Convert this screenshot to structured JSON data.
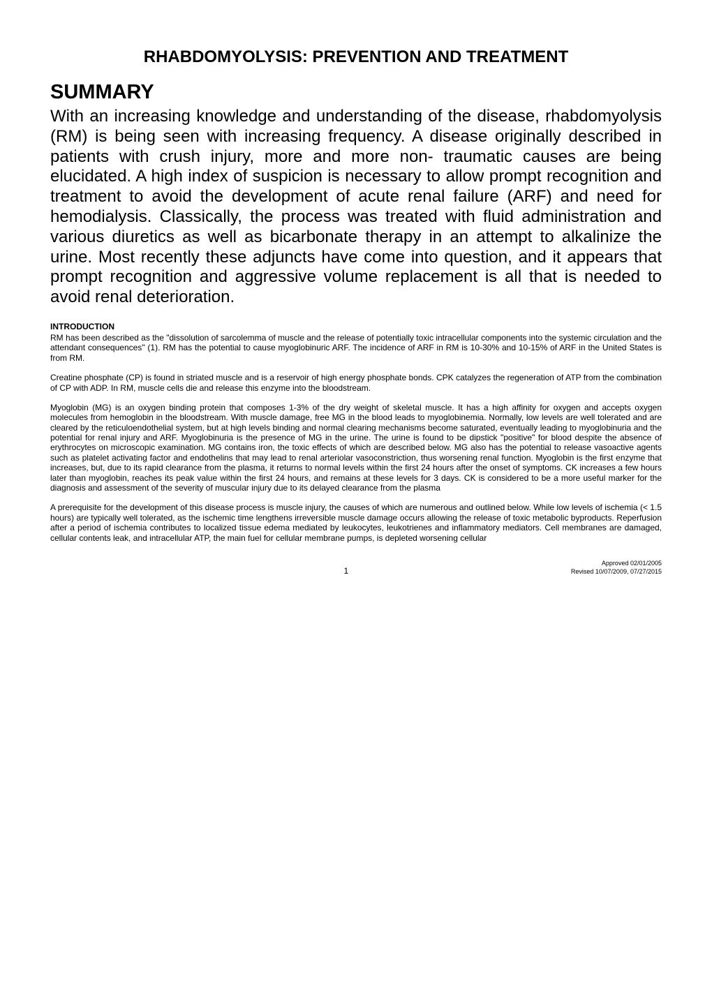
{
  "title": "RHABDOMYOLYSIS: PREVENTION AND TREATMENT",
  "summary": {
    "heading": "SUMMARY",
    "text": "With an increasing knowledge and understanding of the disease, rhabdomyolysis (RM) is being seen with increasing frequency. A disease originally described in patients with crush injury, more and more non- traumatic causes are being elucidated. A high index of suspicion is necessary to allow prompt recognition and treatment to avoid the development of acute renal failure (ARF) and need for hemodialysis.  Classically, the process was treated with fluid administration and various diuretics as well as bicarbonate therapy in an attempt to alkalinize the urine.  Most recently these adjuncts have come into question, and it appears that prompt recognition and aggressive volume replacement is all that is needed to avoid renal deterioration."
  },
  "introduction": {
    "heading": "INTRODUCTION",
    "paragraphs": [
      "RM has been described as the \"dissolution of sarcolemma of muscle and the release of potentially toxic intracellular components into the systemic circulation and the attendant consequences\" (1).  RM has the potential to cause myoglobinuric ARF.  The incidence of ARF in RM is 10-30% and 10-15% of ARF in the United States is from RM.",
      "Creatine phosphate (CP) is found in striated muscle and is a reservoir of high energy phosphate bonds. CPK catalyzes the regeneration of ATP from the combination of CP with ADP.  In RM, muscle cells die and release this enzyme into the bloodstream.",
      "Myoglobin (MG) is an oxygen binding protein that composes 1-3% of the dry weight of skeletal muscle.  It has a high affinity for oxygen and accepts oxygen molecules from hemoglobin in the bloodstream.  With muscle damage, free MG in the blood leads to myoglobinemia.  Normally, low levels are well tolerated and are cleared by the reticuloendothelial system, but at high levels binding and normal clearing mechanisms become saturated, eventually leading to myoglobinuria and the potential for renal injury and ARF. Myoglobinuria is the presence of MG in the urine.  The urine is found to be dipstick \"positive\" for blood despite the absence of erythrocytes on microscopic examination. MG contains iron, the toxic effects of which are described below.  MG also has the potential to release vasoactive agents such as platelet activating factor and endothelins that may lead to renal arteriolar vasoconstriction, thus worsening renal function. Myoglobin is the first enzyme that increases, but, due to its rapid clearance from the plasma, it returns to normal levels within the first 24 hours after the onset of symptoms. CK increases a few hours later  than myoglobin, reaches its peak value within the first 24 hours, and  remains at these levels for 3 days. CK is considered to be a more useful marker for the diagnosis and assessment of the severity of muscular injury due to its delayed clearance from the plasma",
      "A prerequisite for the development of this disease process is muscle injury, the causes of which are numerous and outlined below.  While low levels of ischemia (< 1.5 hours) are typically well tolerated, as the ischemic time lengthens irreversible muscle damage occurs allowing the release of toxic metabolic byproducts.  Reperfusion after a period of ischemia contributes to localized tissue edema mediated by leukocytes, leukotrienes and inflammatory mediators. Cell membranes are damaged, cellular contents leak, and intracellular ATP, the main fuel for cellular membrane pumps, is depleted worsening cellular"
    ]
  },
  "footer": {
    "pageNumber": "1",
    "approved": "Approved 02/01/2005",
    "revised": "Revised 10/07/2009, 07/27/2015"
  },
  "styling": {
    "pageWidth": 1020,
    "pageHeight": 1443,
    "backgroundColor": "#ffffff",
    "textColor": "#000000",
    "fontFamily": "Arial, Helvetica, sans-serif",
    "titleFontSize": 24,
    "summaryHeadingFontSize": 29,
    "summaryTextFontSize": 24,
    "sectionHeadingFontSize": 12,
    "bodyFontSize": 12,
    "footerFontSize": 9,
    "textAlign": "justify"
  }
}
